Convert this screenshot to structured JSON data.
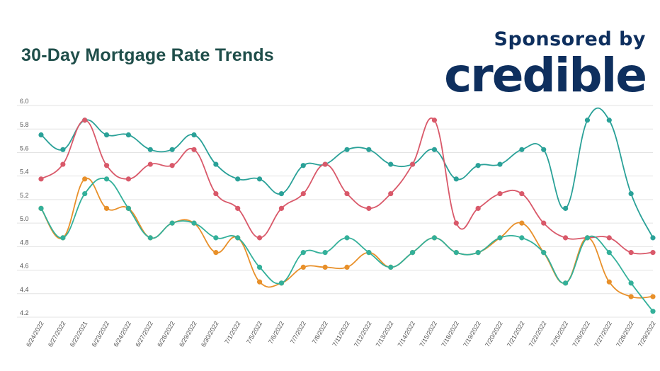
{
  "title": "30-Day Mortgage Rate Trends",
  "sponsor": {
    "label": "Sponsored by",
    "brand": "credible"
  },
  "chart_data": {
    "type": "line",
    "title": "30-Day Mortgage Rate Trends",
    "xlabel": "",
    "ylabel": "",
    "ylim": [
      4.2,
      6.0
    ],
    "yticks": [
      "6.0",
      "5.8",
      "5.6",
      "5.4",
      "5.2",
      "5.0",
      "4.8",
      "4.6",
      "4.4",
      "4.2"
    ],
    "grid": true,
    "x": [
      "6/24/2022",
      "6/27/2022",
      "6/22/2021",
      "6/23/2022",
      "6/24/2022",
      "6/27/2022",
      "6/28/2022",
      "6/29/2022",
      "6/30/2022",
      "7/1/2022",
      "7/5/2022",
      "7/6/2022",
      "7/7/2022",
      "7/8/2022",
      "7/11/2022",
      "7/12/2022",
      "7/13/2022",
      "7/14/2022",
      "7/15/2022",
      "7/18/2022",
      "7/19/2022",
      "7/20/2022",
      "7/21/2022",
      "7/22/2022",
      "7/25/2022",
      "7/26/2022",
      "7/27/2022",
      "7/28/2022",
      "7/29/2022"
    ],
    "series": [
      {
        "color": "#2aa198",
        "values": [
          5.75,
          5.625,
          5.875,
          5.75,
          5.75,
          5.625,
          5.625,
          5.75,
          5.5,
          5.375,
          5.375,
          5.25,
          5.49,
          5.5,
          5.625,
          5.625,
          5.5,
          5.5,
          5.625,
          5.375,
          5.49,
          5.5,
          5.625,
          5.625,
          5.125,
          5.875,
          5.875,
          5.25,
          4.875
        ]
      },
      {
        "color": "#d9596a",
        "values": [
          5.375,
          5.5,
          5.875,
          5.49,
          5.375,
          5.5,
          5.49,
          5.625,
          5.25,
          5.125,
          4.875,
          5.125,
          5.25,
          5.5,
          5.25,
          5.125,
          5.25,
          5.5,
          5.875,
          5.0,
          5.125,
          5.25,
          5.25,
          5.0,
          4.875,
          4.875,
          4.875,
          4.75,
          4.75
        ]
      },
      {
        "color": "#e8902a",
        "values": [
          5.125,
          4.875,
          5.375,
          5.125,
          5.125,
          4.875,
          5.0,
          5.0,
          4.75,
          4.875,
          4.5,
          4.49,
          4.625,
          4.625,
          4.625,
          4.75,
          4.625,
          4.75,
          4.875,
          4.75,
          4.75,
          4.875,
          5.0,
          4.75,
          4.49,
          4.875,
          4.5,
          4.375,
          4.375
        ]
      },
      {
        "color": "#33b09a",
        "values": [
          5.125,
          4.875,
          5.25,
          5.375,
          5.125,
          4.875,
          5.0,
          5.0,
          4.875,
          4.875,
          4.625,
          4.49,
          4.75,
          4.75,
          4.875,
          4.75,
          4.625,
          4.75,
          4.875,
          4.75,
          4.75,
          4.875,
          4.875,
          4.75,
          4.49,
          4.875,
          4.75,
          4.49,
          4.25
        ]
      }
    ]
  }
}
